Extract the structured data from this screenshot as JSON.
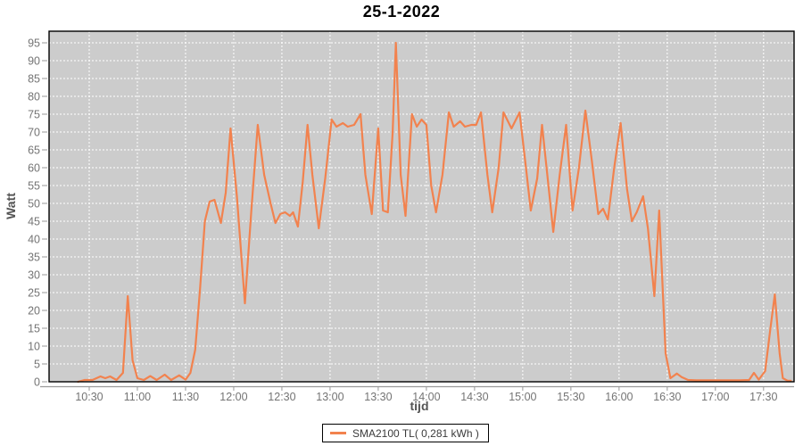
{
  "chart": {
    "title": "25-1-2022",
    "y_axis_label": "Watt",
    "x_axis_label": "tijd",
    "legend": {
      "label": "SMA2100 TL( 0,281 kWh )"
    }
  },
  "chart_data": {
    "type": "line",
    "title": "25-1-2022",
    "xlabel": "tijd",
    "ylabel": "Watt",
    "x_ticks": [
      "10:30",
      "11:00",
      "11:30",
      "12:00",
      "12:30",
      "13:00",
      "13:30",
      "14:00",
      "14:30",
      "15:00",
      "15:30",
      "16:00",
      "16:30",
      "17:00",
      "17:30"
    ],
    "y_ticks": [
      0,
      5,
      10,
      15,
      20,
      25,
      30,
      35,
      40,
      45,
      50,
      55,
      60,
      65,
      70,
      75,
      80,
      85,
      90,
      95
    ],
    "xlim": [
      "10:05",
      "17:49"
    ],
    "ylim": [
      0,
      98.25
    ],
    "grid": "white dashed gridlines on gray plot background",
    "legend_position": "bottom-center",
    "colors": {
      "series": "#f2824e",
      "plot_background": "#cccccc",
      "gridline": "#ffffff",
      "plot_border": "#000000",
      "tick_label": "#747474",
      "axis_title": "#545454",
      "axis_line": "#9a9a9a"
    },
    "series": [
      {
        "name": "SMA2100 TL( 0,281 kWh )",
        "color": "#f2824e",
        "points": [
          [
            "10:23",
            0
          ],
          [
            "10:27",
            0.5
          ],
          [
            "10:32",
            0.5
          ],
          [
            "10:37",
            1.5
          ],
          [
            "10:40",
            1
          ],
          [
            "10:43",
            1.5
          ],
          [
            "10:47",
            0.5
          ],
          [
            "10:51",
            2.5
          ],
          [
            "10:54",
            24
          ],
          [
            "10:57",
            6
          ],
          [
            "11:00",
            1
          ],
          [
            "11:04",
            0.5
          ],
          [
            "11:08",
            1.6
          ],
          [
            "11:12",
            0.5
          ],
          [
            "11:17",
            2
          ],
          [
            "11:21",
            0.5
          ],
          [
            "11:26",
            1.8
          ],
          [
            "11:30",
            0.6
          ],
          [
            "11:33",
            2.5
          ],
          [
            "11:36",
            9
          ],
          [
            "11:39",
            26
          ],
          [
            "11:42",
            45
          ],
          [
            "11:45",
            50.5
          ],
          [
            "11:48",
            51
          ],
          [
            "11:52",
            44.5
          ],
          [
            "11:55",
            53
          ],
          [
            "11:58",
            71
          ],
          [
            "12:02",
            52
          ],
          [
            "12:07",
            22
          ],
          [
            "12:11",
            48
          ],
          [
            "12:15",
            72
          ],
          [
            "12:19",
            58
          ],
          [
            "12:23",
            50
          ],
          [
            "12:26",
            44.5
          ],
          [
            "12:29",
            47
          ],
          [
            "12:32",
            47.5
          ],
          [
            "12:35",
            46.5
          ],
          [
            "12:37",
            47.5
          ],
          [
            "12:40",
            43.5
          ],
          [
            "12:43",
            56
          ],
          [
            "12:46",
            72
          ],
          [
            "12:49",
            58
          ],
          [
            "12:53",
            43
          ],
          [
            "12:57",
            57
          ],
          [
            "13:01",
            73.5
          ],
          [
            "13:04",
            71.5
          ],
          [
            "13:08",
            72.5
          ],
          [
            "13:11",
            71.5
          ],
          [
            "13:15",
            72
          ],
          [
            "13:19",
            75
          ],
          [
            "13:22",
            58
          ],
          [
            "13:26",
            47
          ],
          [
            "13:30",
            71
          ],
          [
            "13:33",
            48
          ],
          [
            "13:36",
            47.5
          ],
          [
            "13:39",
            70
          ],
          [
            "13:41",
            95
          ],
          [
            "13:44",
            58
          ],
          [
            "13:47",
            46.5
          ],
          [
            "13:51",
            75
          ],
          [
            "13:54",
            71.5
          ],
          [
            "13:57",
            73.5
          ],
          [
            "14:00",
            72
          ],
          [
            "14:03",
            55
          ],
          [
            "14:06",
            47.5
          ],
          [
            "14:10",
            58
          ],
          [
            "14:14",
            75.5
          ],
          [
            "14:17",
            71.5
          ],
          [
            "14:21",
            73
          ],
          [
            "14:24",
            71.5
          ],
          [
            "14:28",
            72
          ],
          [
            "14:31",
            72
          ],
          [
            "14:34",
            75.5
          ],
          [
            "14:38",
            58
          ],
          [
            "14:41",
            47.5
          ],
          [
            "14:45",
            60
          ],
          [
            "14:48",
            75.5
          ],
          [
            "14:53",
            71
          ],
          [
            "14:58",
            75.5
          ],
          [
            "15:02",
            60
          ],
          [
            "15:05",
            48
          ],
          [
            "15:09",
            57
          ],
          [
            "15:12",
            72
          ],
          [
            "15:16",
            55
          ],
          [
            "15:19",
            42
          ],
          [
            "15:23",
            58
          ],
          [
            "15:27",
            72
          ],
          [
            "15:31",
            48
          ],
          [
            "15:35",
            60
          ],
          [
            "15:39",
            76
          ],
          [
            "15:43",
            62
          ],
          [
            "15:47",
            47
          ],
          [
            "15:50",
            48.5
          ],
          [
            "15:53",
            45.5
          ],
          [
            "15:57",
            60
          ],
          [
            "16:01",
            72.5
          ],
          [
            "16:05",
            54
          ],
          [
            "16:08",
            45
          ],
          [
            "16:11",
            47.5
          ],
          [
            "16:15",
            52
          ],
          [
            "16:18",
            43
          ],
          [
            "16:22",
            24
          ],
          [
            "16:25",
            48
          ],
          [
            "16:29",
            8
          ],
          [
            "16:32",
            1
          ],
          [
            "16:36",
            2.3
          ],
          [
            "16:39",
            1.3
          ],
          [
            "16:43",
            0.5
          ],
          [
            "16:48",
            0.4
          ],
          [
            "16:55",
            0.4
          ],
          [
            "17:05",
            0.4
          ],
          [
            "17:15",
            0.4
          ],
          [
            "17:21",
            0.5
          ],
          [
            "17:24",
            2.5
          ],
          [
            "17:27",
            0.6
          ],
          [
            "17:31",
            3
          ],
          [
            "17:34",
            14
          ],
          [
            "17:37",
            24.5
          ],
          [
            "17:40",
            8
          ],
          [
            "17:42",
            1
          ],
          [
            "17:45",
            0.3
          ],
          [
            "17:47",
            0.3
          ]
        ]
      }
    ]
  }
}
